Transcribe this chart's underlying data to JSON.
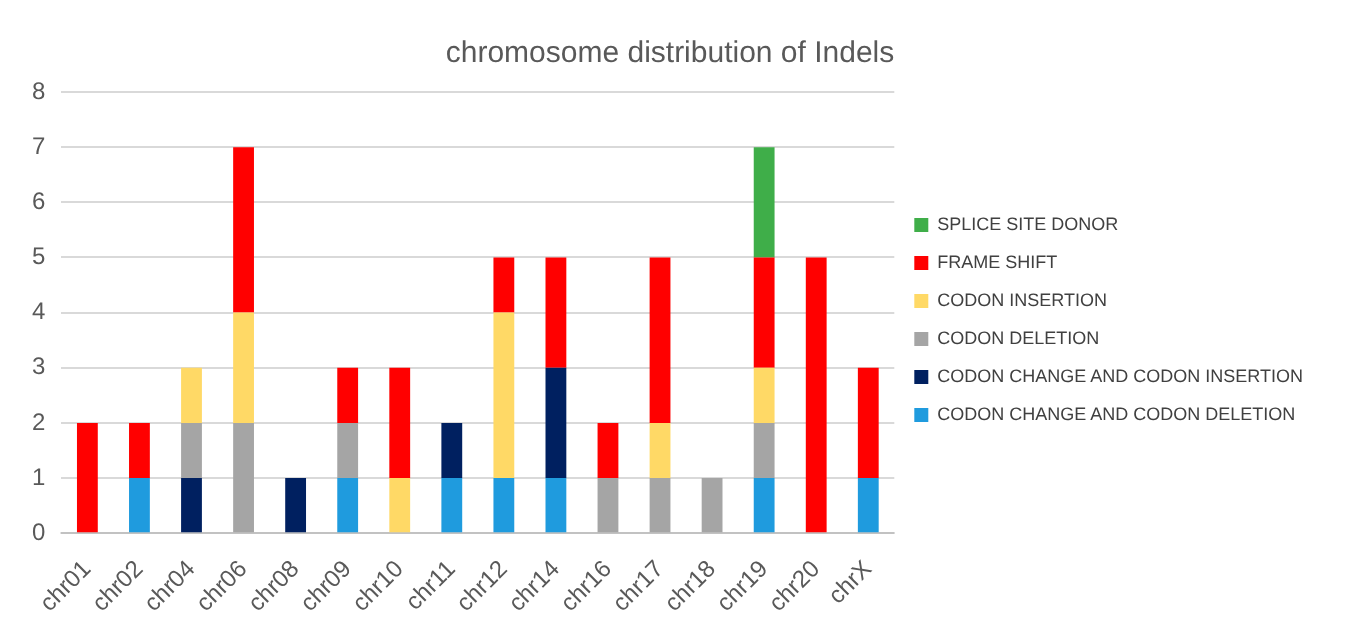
{
  "chart_data": {
    "type": "bar",
    "title": "chromosome distribution of Indels",
    "stacked": true,
    "categories": [
      "chr01",
      "chr02",
      "chr04",
      "chr06",
      "chr08",
      "chr09",
      "chr10",
      "chr11",
      "chr12",
      "chr14",
      "chr16",
      "chr17",
      "chr18",
      "chr19",
      "chr20",
      "chrX"
    ],
    "series": [
      {
        "name": "CODON CHANGE AND CODON DELETION",
        "color": "#1f9bde",
        "values": [
          null,
          1,
          null,
          null,
          null,
          1,
          null,
          1,
          1,
          1,
          null,
          null,
          null,
          1,
          null,
          1
        ]
      },
      {
        "name": "CODON CHANGE AND CODON INSERTION",
        "color": "#002060",
        "values": [
          null,
          null,
          1,
          null,
          1,
          null,
          null,
          1,
          null,
          2,
          null,
          null,
          null,
          null,
          null,
          null
        ]
      },
      {
        "name": "CODON DELETION",
        "color": "#a5a5a5",
        "values": [
          null,
          null,
          1,
          2,
          null,
          1,
          null,
          null,
          null,
          null,
          1,
          1,
          1,
          1,
          null,
          null
        ]
      },
      {
        "name": "CODON INSERTION",
        "color": "#ffd966",
        "values": [
          null,
          null,
          1,
          2,
          null,
          null,
          1,
          null,
          3,
          null,
          null,
          1,
          null,
          1,
          null,
          null
        ]
      },
      {
        "name": "FRAME SHIFT",
        "color": "#ff0000",
        "values": [
          2,
          1,
          null,
          3,
          null,
          1,
          2,
          null,
          1,
          2,
          1,
          3,
          null,
          2,
          5,
          2
        ]
      },
      {
        "name": "SPLICE SITE DONOR",
        "color": "#3fae49",
        "values": [
          null,
          null,
          null,
          null,
          null,
          null,
          null,
          null,
          null,
          null,
          null,
          null,
          null,
          2,
          null,
          null
        ]
      }
    ],
    "ylim": [
      0,
      8
    ],
    "yticks": [
      0,
      1,
      2,
      3,
      4,
      5,
      6,
      7,
      8
    ],
    "grid": "y",
    "legend": "right"
  }
}
